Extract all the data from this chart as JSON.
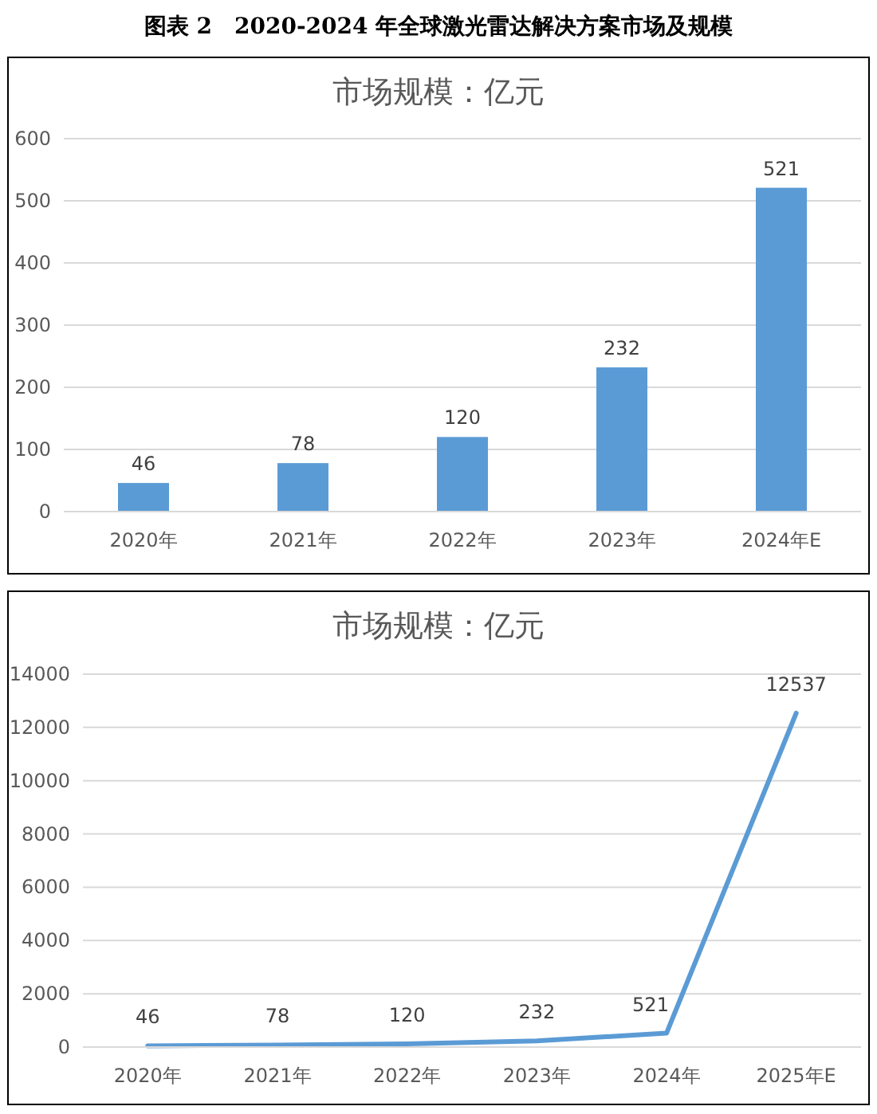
{
  "chart_data": [
    {
      "type": "bar",
      "title": "图表 2　2020-2024 年全球激光雷达解决方案市场及规模",
      "subtitle": "市场规模：亿元",
      "categories": [
        "2020年",
        "2021年",
        "2022年",
        "2023年",
        "2024年E"
      ],
      "values": [
        46,
        78,
        120,
        232,
        521
      ],
      "color": "#5b9bd5",
      "ylim": [
        0,
        600
      ],
      "yticks": [
        0,
        100,
        200,
        300,
        400,
        500,
        600
      ],
      "grid": "y",
      "data_labels": true
    },
    {
      "type": "line",
      "title": "市场规模：亿元",
      "categories": [
        "2020年",
        "2021年",
        "2022年",
        "2023年",
        "2024年",
        "2025年E"
      ],
      "values": [
        46,
        78,
        120,
        232,
        521,
        12537
      ],
      "color": "#5b9bd5",
      "marker": "none",
      "line_style": "solid",
      "ylim": [
        0,
        14000
      ],
      "yticks": [
        0,
        2000,
        4000,
        6000,
        8000,
        10000,
        12000,
        14000
      ],
      "grid": "y",
      "data_labels": true
    }
  ]
}
